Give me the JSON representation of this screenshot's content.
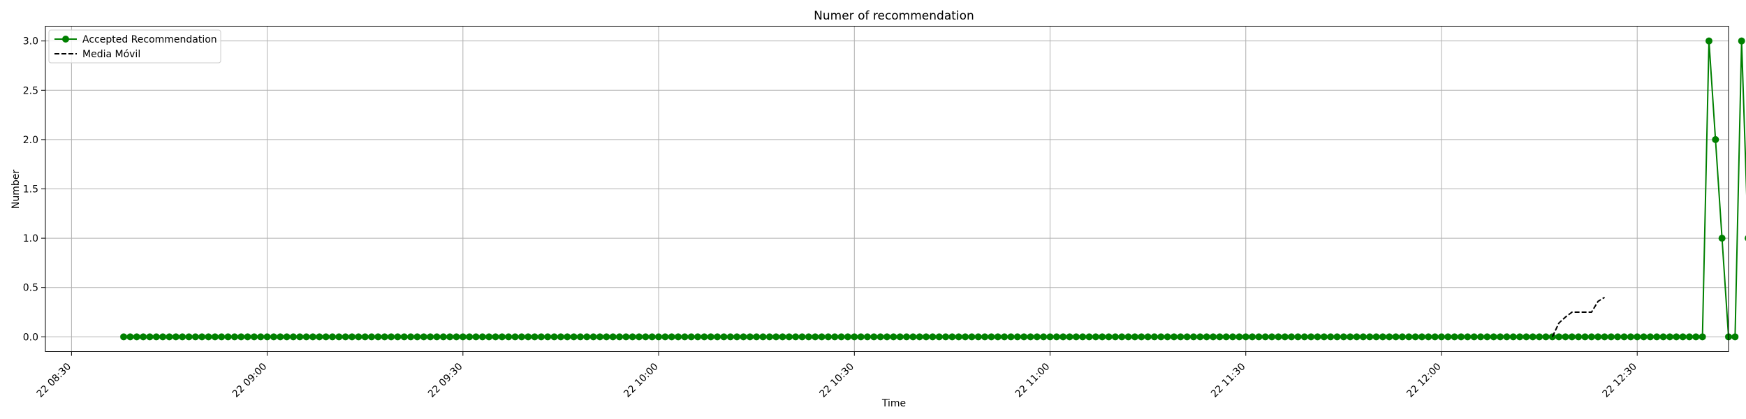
{
  "chart_data": {
    "type": "line",
    "title": "Numer of recommendation",
    "xlabel": "Time",
    "ylabel": "Number",
    "x_tick_labels": [
      "22 08:30",
      "22 09:00",
      "22 09:30",
      "22 10:00",
      "22 10:30",
      "22 11:00",
      "22 11:30",
      "22 12:00",
      "22 12:30"
    ],
    "y_tick_labels": [
      "0.0",
      "0.5",
      "1.0",
      "1.5",
      "2.0",
      "2.5",
      "3.0"
    ],
    "xlim": [
      "08:26",
      "12:44"
    ],
    "ylim": [
      -0.15,
      3.15
    ],
    "grid": true,
    "legend_position": "top-left",
    "series": [
      {
        "name": "Accepted Recommendation",
        "color": "#008000",
        "style": "solid-with-circle-markers",
        "x_start": "08:38",
        "x_step_minutes": 1,
        "values": [
          0,
          0,
          0,
          0,
          0,
          0,
          0,
          0,
          0,
          0,
          0,
          0,
          0,
          0,
          0,
          0,
          0,
          0,
          0,
          0,
          0,
          0,
          0,
          0,
          0,
          0,
          0,
          0,
          0,
          0,
          0,
          0,
          0,
          0,
          0,
          0,
          0,
          0,
          0,
          0,
          0,
          0,
          0,
          0,
          0,
          0,
          0,
          0,
          0,
          0,
          0,
          0,
          0,
          0,
          0,
          0,
          0,
          0,
          0,
          0,
          0,
          0,
          0,
          0,
          0,
          0,
          0,
          0,
          0,
          0,
          0,
          0,
          0,
          0,
          0,
          0,
          0,
          0,
          0,
          0,
          0,
          0,
          0,
          0,
          0,
          0,
          0,
          0,
          0,
          0,
          0,
          0,
          0,
          0,
          0,
          0,
          0,
          0,
          0,
          0,
          0,
          0,
          0,
          0,
          0,
          0,
          0,
          0,
          0,
          0,
          0,
          0,
          0,
          0,
          0,
          0,
          0,
          0,
          0,
          0,
          0,
          0,
          0,
          0,
          0,
          0,
          0,
          0,
          0,
          0,
          0,
          0,
          0,
          0,
          0,
          0,
          0,
          0,
          0,
          0,
          0,
          0,
          0,
          0,
          0,
          0,
          0,
          0,
          0,
          0,
          0,
          0,
          0,
          0,
          0,
          0,
          0,
          0,
          0,
          0,
          0,
          0,
          0,
          0,
          0,
          0,
          0,
          0,
          0,
          0,
          0,
          0,
          0,
          0,
          0,
          0,
          0,
          0,
          0,
          0,
          0,
          0,
          0,
          0,
          0,
          0,
          0,
          0,
          0,
          0,
          0,
          0,
          0,
          0,
          0,
          0,
          0,
          0,
          0,
          0,
          0,
          0,
          0,
          0,
          0,
          0,
          0,
          0,
          0,
          0,
          0,
          0,
          0,
          0,
          0,
          0,
          0,
          0,
          0,
          0,
          0,
          0,
          0,
          0,
          0,
          0,
          0,
          0,
          0,
          0,
          0,
          0,
          0,
          0,
          0,
          0,
          0,
          0,
          0,
          0,
          0,
          0,
          0,
          3,
          2,
          1,
          0,
          0,
          3,
          1
        ]
      },
      {
        "name": "Media Móvil",
        "color": "#000000",
        "style": "dashed",
        "points": [
          [
            "12:17",
            0.0
          ],
          [
            "12:18",
            0.14
          ],
          [
            "12:19",
            0.2
          ],
          [
            "12:20",
            0.25
          ],
          [
            "12:21",
            0.25
          ],
          [
            "12:22",
            0.25
          ],
          [
            "12:23",
            0.25
          ],
          [
            "12:24",
            0.36
          ],
          [
            "12:25",
            0.4
          ]
        ]
      }
    ]
  }
}
